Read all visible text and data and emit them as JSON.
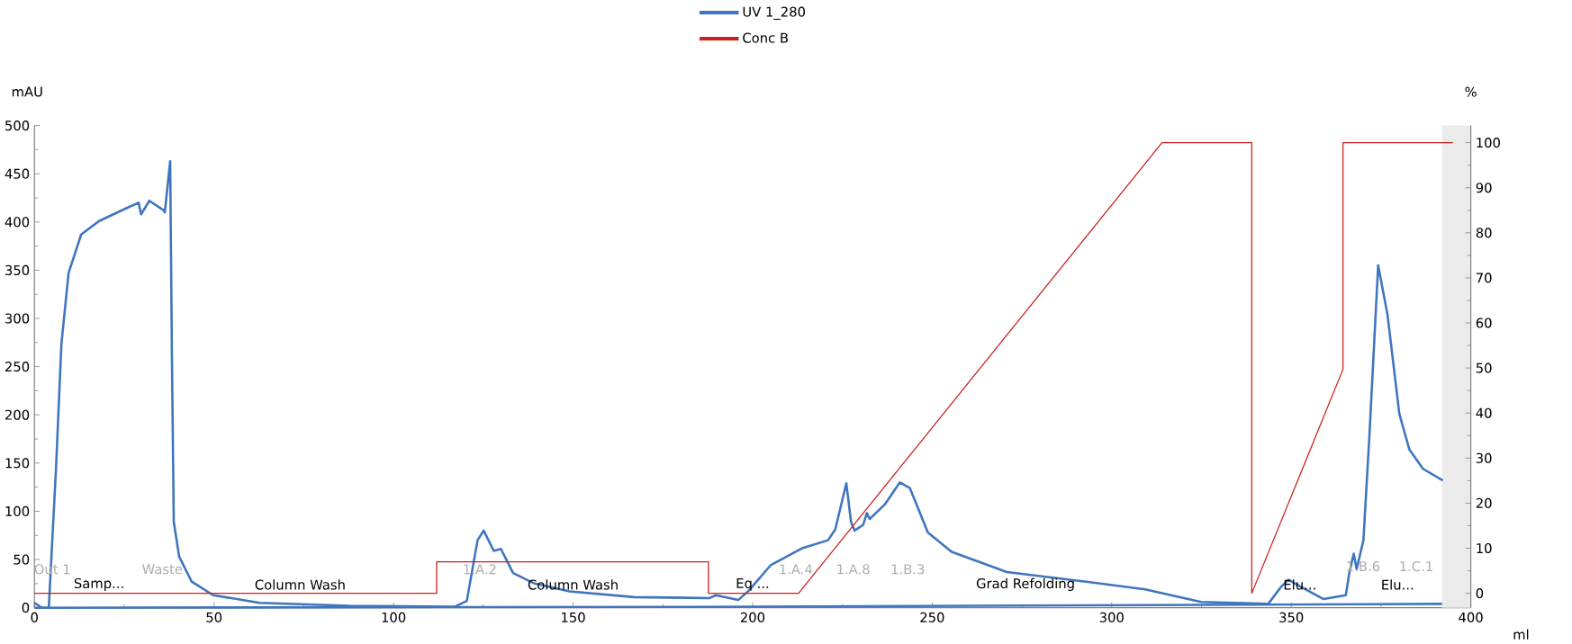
{
  "chart_data": {
    "type": "line",
    "xlabel": "ml",
    "ylabel": "mAU",
    "y2label": "%",
    "legend": "top",
    "xlim": [
      0,
      400
    ],
    "xticks": [
      0,
      50,
      100,
      150,
      200,
      250,
      300,
      350,
      400
    ],
    "ylim": [
      0,
      500
    ],
    "yticks": [
      0,
      50,
      100,
      150,
      200,
      250,
      300,
      350,
      400,
      450,
      500
    ],
    "y2lim": [
      -3.2,
      103.8
    ],
    "y2ticks": [
      0,
      10,
      20,
      30,
      40,
      50,
      60,
      70,
      80,
      90,
      100
    ],
    "bands": [
      {
        "axis": "x",
        "from": 392,
        "to": 400,
        "color": "#ebebeb"
      }
    ],
    "series": [
      {
        "name": "UV 1_280",
        "color": "#3f75be",
        "x": [
          0,
          2,
          4,
          6,
          7.5,
          9.5,
          13,
          18,
          26,
          29,
          29.7,
          32,
          36,
          36.3,
          37.8,
          38.3,
          38.8,
          40.3,
          43.8,
          49.8,
          62.7,
          87.6,
          117,
          120.4,
          123.4,
          125.1,
          127.9,
          129.9,
          133.3,
          139.3,
          149,
          167,
          188,
          189.8,
          196,
          199,
          205,
          214,
          221,
          223,
          226.1,
          227.4,
          228.4,
          230.8,
          231.8,
          232.6,
          236.8,
          241,
          243.8,
          248.8,
          255.4,
          270.8,
          292.9,
          309.3,
          324.9,
          343.6,
          347,
          349.2,
          353,
          359,
          365.2,
          366.2,
          367.4,
          368.2,
          370.1,
          371.8,
          374.2,
          376.8,
          380.1,
          382.9,
          386.7,
          392.2
        ],
        "values": [
          5,
          0,
          0,
          144,
          273,
          347,
          387,
          401,
          415,
          420,
          408,
          422,
          412,
          410,
          463,
          255,
          89,
          53,
          27,
          13,
          5,
          2,
          1,
          7,
          70,
          80,
          59,
          61,
          36,
          25,
          17,
          11,
          10,
          13,
          8,
          18,
          44,
          62,
          70,
          81,
          129,
          89,
          80,
          86,
          98,
          92,
          107,
          130,
          124,
          78,
          58,
          37,
          27,
          19,
          6,
          4,
          21,
          29,
          21,
          9,
          13,
          37,
          56,
          40,
          70,
          181,
          355,
          304,
          201,
          164,
          144,
          132
        ]
      },
      {
        "color": "#3f75be",
        "x": [
          0,
          200,
          392
        ],
        "values": [
          0,
          1,
          4
        ]
      },
      {
        "name": "Conc B",
        "color": "#cc1f1f",
        "axis": "y2",
        "x": [
          0,
          112,
          112,
          187.7,
          187.7,
          212.8,
          314,
          339,
          339,
          364.4,
          364.4,
          395
        ],
        "values": [
          0,
          0,
          7,
          7,
          0,
          0,
          100,
          100,
          0,
          49.7,
          100,
          100
        ]
      }
    ],
    "annotations": [
      "Out 1",
      "Waste",
      "1.A.2",
      "1.A.4",
      "1.A.8",
      "1.B.3",
      "1.B.6",
      "1.C.1",
      "Samp...",
      "Column Wash",
      "Column Wash",
      "Eq ...",
      "Grad Refolding",
      "Elu...",
      "Elu..."
    ]
  }
}
